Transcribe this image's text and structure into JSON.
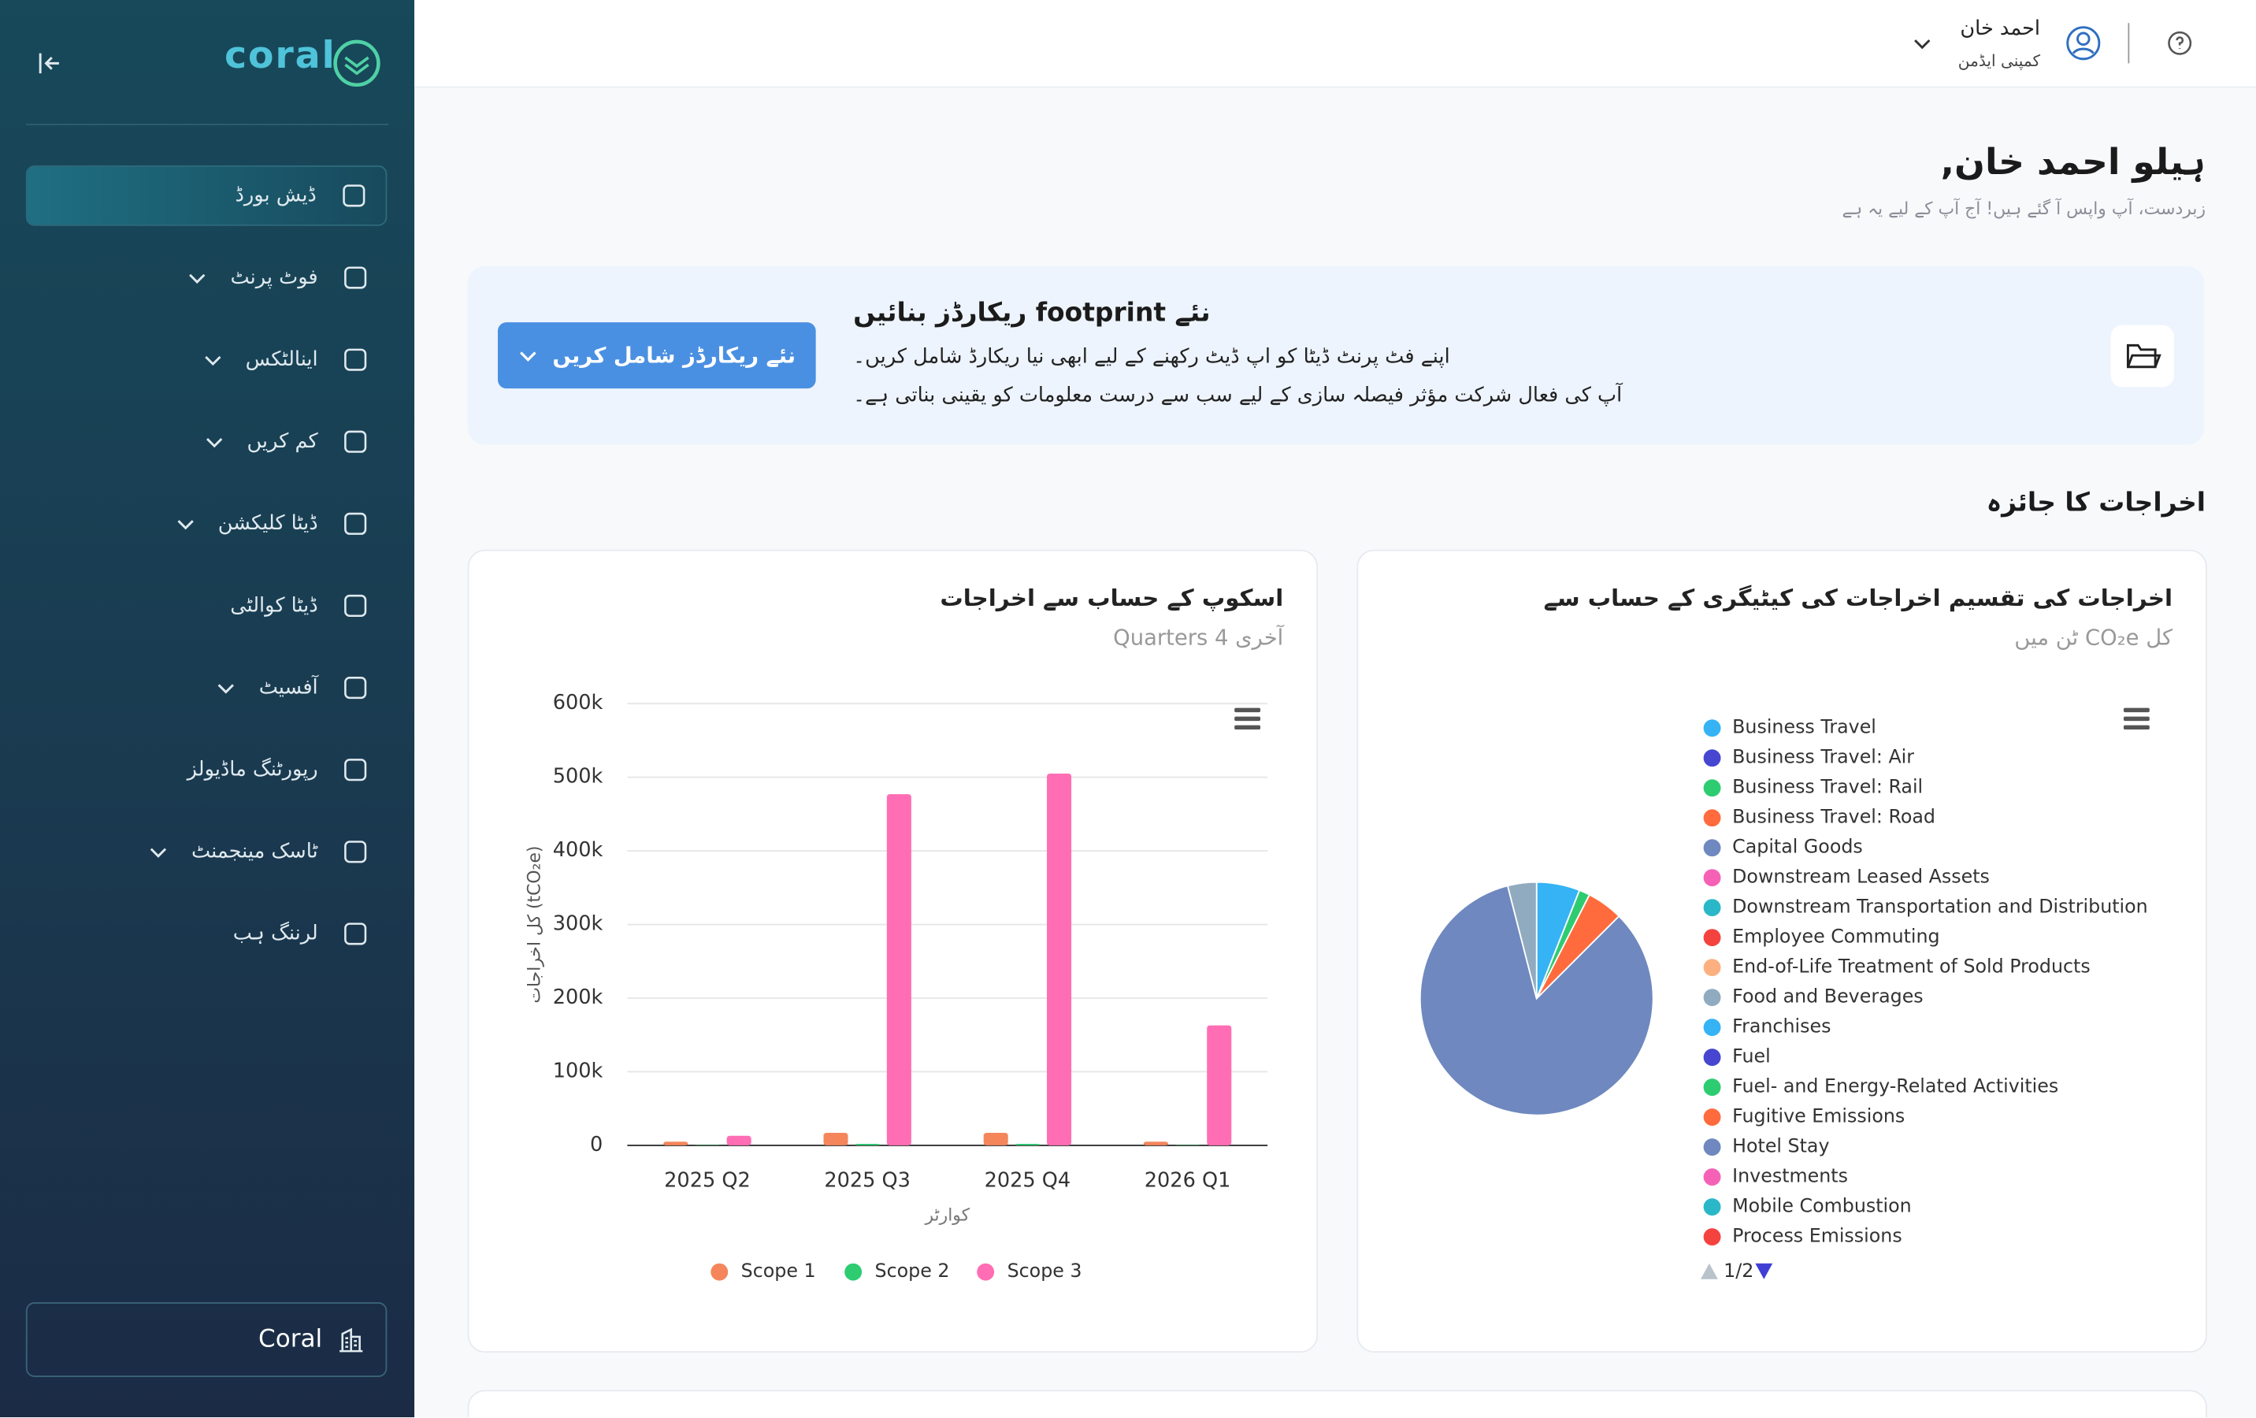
{
  "sidebar": {
    "logo": "coral",
    "footer": "Coral",
    "nav": [
      {
        "label": "ڈیش بورڈ",
        "active": true,
        "expandable": false
      },
      {
        "label": "فوٹ پرنٹ",
        "active": false,
        "expandable": true
      },
      {
        "label": "اینالٹکس",
        "active": false,
        "expandable": true
      },
      {
        "label": "کم کریں",
        "active": false,
        "expandable": true
      },
      {
        "label": "ڈیٹا کلیکشن",
        "active": false,
        "expandable": true
      },
      {
        "label": "ڈیٹا کوالٹی",
        "active": false,
        "expandable": false
      },
      {
        "label": "آفسیٹ",
        "active": false,
        "expandable": true
      },
      {
        "label": "رپورٹنگ ماڈیولز",
        "active": false,
        "expandable": false
      },
      {
        "label": "ٹاسک مینجمنٹ",
        "active": false,
        "expandable": true
      },
      {
        "label": "لرننگ ہب",
        "active": false,
        "expandable": false
      }
    ]
  },
  "header": {
    "user_name": "احمد خان",
    "user_role": "کمپنی ایڈمن"
  },
  "greeting": {
    "title": "ہیلو احمد خان,",
    "subtitle": "زبردست، آپ واپس آ گئے ہیں! آج آپ کے لیے یہ ہے"
  },
  "banner": {
    "title": "نئے footprint ریکارڈز بنائیں",
    "lines": [
      "اپنے فٹ پرنٹ ڈیٹا کو اپ ڈیٹ رکھنے کے لیے ابھی نیا ریکارڈ شامل کریں۔",
      "آپ کی فعال شرکت مؤثر فیصلہ سازی کے لیے سب سے درست معلومات کو یقینی بناتی ہے۔"
    ],
    "button": "نئے ریکارڈز شامل کریں"
  },
  "section_title": "اخراجات کا جائزہ",
  "chart_data": [
    {
      "type": "bar",
      "title": "اسکوپ کے حساب سے اخراجات",
      "subtitle": "آخری 4 Quarters",
      "x_label": "کوارٹر",
      "y_label": "کل اخراجات (tCO₂e)",
      "categories": [
        "2025 Q2",
        "2025 Q3",
        "2025 Q4",
        "2026 Q1"
      ],
      "series": [
        {
          "name": "Scope 1",
          "color": "#f5865b",
          "values": [
            5000,
            17000,
            17000,
            5000
          ]
        },
        {
          "name": "Scope 2",
          "color": "#2ecc71",
          "values": [
            500,
            2000,
            2000,
            500
          ]
        },
        {
          "name": "Scope 3",
          "color": "#ff6eb4",
          "values": [
            13000,
            477000,
            505000,
            163000
          ]
        }
      ],
      "ylim": [
        0,
        600000
      ],
      "yticks": [
        {
          "value": 0,
          "label": "0"
        },
        {
          "value": 100000,
          "label": "100k"
        },
        {
          "value": 200000,
          "label": "200k"
        },
        {
          "value": 300000,
          "label": "300k"
        },
        {
          "value": 400000,
          "label": "400k"
        },
        {
          "value": 500000,
          "label": "500k"
        },
        {
          "value": 600000,
          "label": "600k"
        }
      ],
      "grid": true
    },
    {
      "type": "pie",
      "title": "اخراجات کی تقسیم اخراجات کی کیٹیگری کے حساب سے",
      "subtitle": "کل CO₂e ٹن میں",
      "categories": [
        "Business Travel",
        "Business Travel: Air",
        "Business Travel: Rail",
        "Business Travel: Road",
        "Capital Goods",
        "Downstream Leased Assets",
        "Downstream Transportation and Distribution",
        "Employee Commuting",
        "End-of-Life Treatment of Sold Products",
        "Food and Beverages",
        "Franchises",
        "Fuel",
        "Fuel- and Energy-Related Activities",
        "Fugitive Emissions",
        "Hotel Stay",
        "Investments",
        "Mobile Combustion",
        "Process Emissions"
      ],
      "values": [
        6,
        0,
        1.5,
        5,
        83.5,
        0,
        0,
        0,
        0,
        4,
        0,
        0,
        0,
        0,
        0,
        0,
        0,
        0
      ],
      "colors": [
        "#36b3f5",
        "#4646d0",
        "#2ecc71",
        "#ff6b3d",
        "#6f88bf",
        "#f562b5",
        "#2ab8c8",
        "#f4433f",
        "#fdb07f",
        "#90abc0",
        "#36b3f5",
        "#4646d0",
        "#2ecc71",
        "#ff6b3d",
        "#6f88bf",
        "#f562b5",
        "#2ab8c8",
        "#f4433f"
      ],
      "legend_page": "1/2"
    }
  ]
}
